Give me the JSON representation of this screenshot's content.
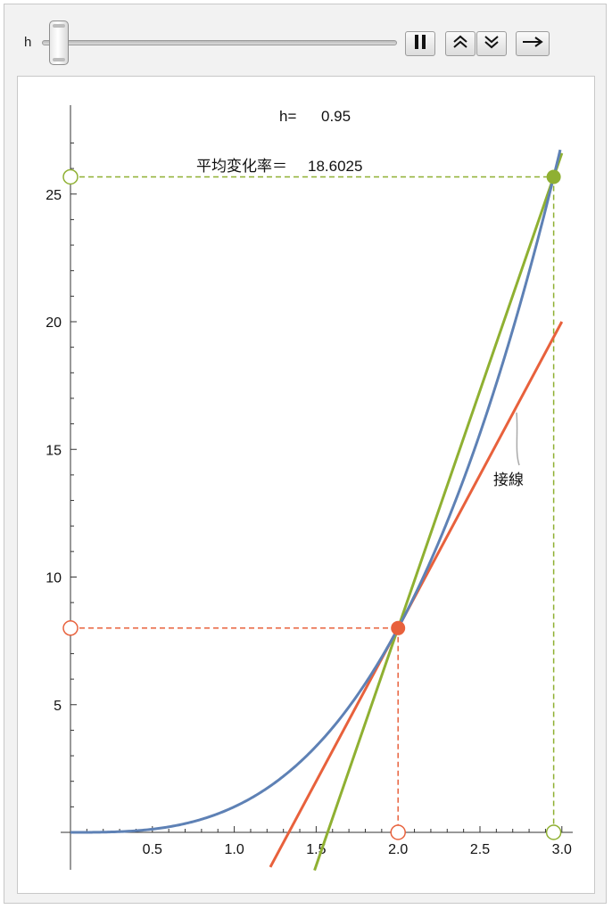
{
  "controls": {
    "slider_label": "h",
    "slider_value": 0.95,
    "slider_min": 0.95,
    "slider_max": 0,
    "buttons": [
      "pause-icon",
      "speed-up-icon",
      "slow-down-icon",
      "direction-icon"
    ]
  },
  "chart_data": {
    "type": "line",
    "function": "x^3",
    "a": 2,
    "h": 0.95,
    "h_label": "h=",
    "h_value_text": "0.95",
    "avg_label": "平均変化率＝",
    "avg_value_text": "18.6025",
    "tangent_label": "接線",
    "xlim": [
      0,
      3.1
    ],
    "ylim": [
      -1.5,
      28
    ],
    "x_ticks": [
      {
        "v": 0.5,
        "label": "0.5"
      },
      {
        "v": 1.0,
        "label": "1.0"
      },
      {
        "v": 1.5,
        "label": "1.5"
      },
      {
        "v": 2.0,
        "label": "2.0"
      },
      {
        "v": 2.5,
        "label": "2.5"
      },
      {
        "v": 3.0,
        "label": "3.0"
      }
    ],
    "y_ticks": [
      {
        "v": 5,
        "label": "5"
      },
      {
        "v": 10,
        "label": "10"
      },
      {
        "v": 15,
        "label": "15"
      },
      {
        "v": 20,
        "label": "20"
      },
      {
        "v": 25,
        "label": "25"
      }
    ],
    "points": [
      {
        "x": 2.0,
        "y": 8.0
      },
      {
        "x": 2.95,
        "y": 25.672
      }
    ],
    "tangent_slope": 12,
    "secant_slope": 18.6025,
    "colors": {
      "curve": "#5e81b5",
      "tangent": "#e8613c",
      "secant": "#8fb032",
      "axis": "#333333",
      "callout": "#aaaaaa"
    }
  }
}
